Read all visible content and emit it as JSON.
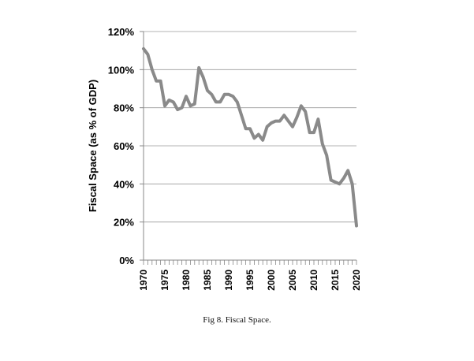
{
  "caption": "Fig 8.  Fiscal Space.",
  "chart_data": {
    "type": "line",
    "title": "",
    "xlabel": "",
    "ylabel": "Fiscal Space (as % of GDP)",
    "xlim": [
      1970,
      2020
    ],
    "ylim": [
      0,
      120
    ],
    "yticks": [
      "0%",
      "20%",
      "40%",
      "60%",
      "80%",
      "100%",
      "120%"
    ],
    "xticks": [
      "1970",
      "1975",
      "1980",
      "1985",
      "1990",
      "1995",
      "2000",
      "2005",
      "2010",
      "2015",
      "2020"
    ],
    "grid": "horizontal",
    "line_color": "#8a8a8a",
    "series": [
      {
        "x": [
          1970,
          1971,
          1972,
          1973,
          1974,
          1975,
          1976,
          1977,
          1978,
          1979,
          1980,
          1981,
          1982,
          1983,
          1984,
          1985,
          1986,
          1987,
          1988,
          1989,
          1990,
          1991,
          1992,
          1993,
          1994,
          1995,
          1996,
          1997,
          1998,
          1999,
          2000,
          2001,
          2002,
          2003,
          2004,
          2005,
          2006,
          2007,
          2008,
          2009,
          2010,
          2011,
          2012,
          2013,
          2014,
          2015,
          2016,
          2017,
          2018,
          2019,
          2020
        ],
        "values": [
          111,
          108,
          100,
          94,
          94,
          81,
          84,
          83,
          79,
          80,
          86,
          81,
          82,
          101,
          96,
          89,
          87,
          83,
          83,
          87,
          87,
          86,
          83,
          76,
          69,
          69,
          64,
          66,
          63,
          70,
          72,
          73,
          73,
          76,
          73,
          70,
          75,
          81,
          78,
          67,
          67,
          74,
          61,
          55,
          42,
          41,
          40,
          43,
          47,
          40,
          18
        ]
      }
    ]
  }
}
